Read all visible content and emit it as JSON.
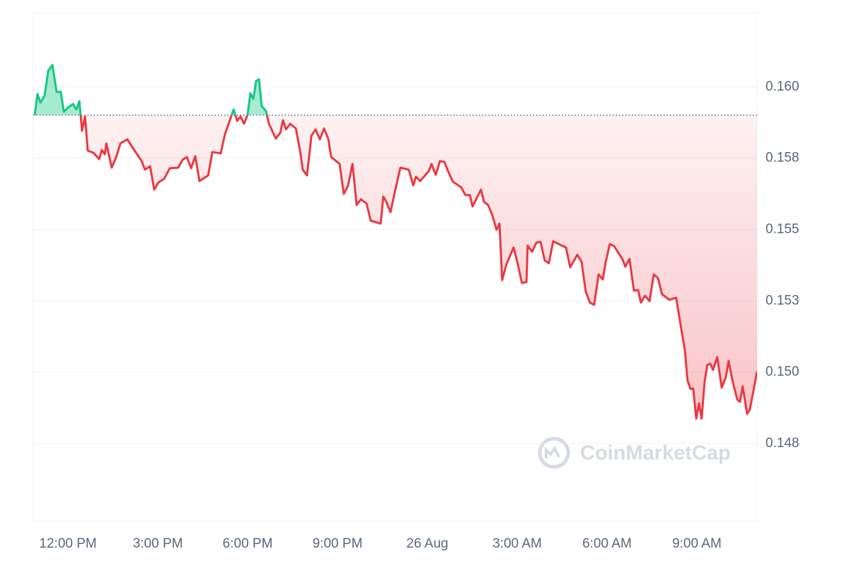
{
  "chart_data": {
    "type": "line",
    "x": [
      -1.11,
      -1.02,
      -0.92,
      -0.78,
      -0.66,
      -0.52,
      -0.38,
      -0.24,
      -0.14,
      0,
      0.17,
      0.28,
      0.38,
      0.47,
      0.57,
      0.66,
      0.85,
      1.04,
      1.13,
      1.23,
      1.28,
      1.46,
      1.61,
      1.75,
      1.98,
      2.22,
      2.46,
      2.57,
      2.74,
      2.88,
      3.02,
      3.21,
      3.4,
      3.68,
      3.83,
      3.97,
      4.11,
      4.25,
      4.39,
      4.68,
      4.82,
      5.1,
      5.24,
      5.39,
      5.53,
      5.65,
      5.76,
      5.88,
      6.0,
      6.09,
      6.19,
      6.28,
      6.38,
      6.47,
      6.61,
      6.71,
      6.94,
      7.09,
      7.18,
      7.28,
      7.42,
      7.61,
      7.75,
      7.84,
      7.98,
      8.13,
      8.27,
      8.41,
      8.55,
      8.69,
      8.79,
      9.07,
      9.21,
      9.35,
      9.5,
      9.64,
      9.78,
      9.97,
      10.11,
      10.44,
      10.53,
      10.63,
      10.77,
      10.91,
      11.1,
      11.38,
      11.53,
      11.62,
      11.76,
      12.05,
      12.14,
      12.28,
      12.42,
      12.57,
      12.71,
      12.85,
      13.13,
      13.27,
      13.42,
      13.51,
      13.79,
      13.89,
      14.03,
      14.17,
      14.31,
      14.41,
      14.5,
      14.64,
      14.88,
      15.02,
      15.16,
      15.31,
      15.35,
      15.5,
      15.64,
      15.78,
      15.92,
      16.06,
      16.2,
      16.49,
      16.63,
      16.77,
      17.01,
      17.15,
      17.29,
      17.43,
      17.57,
      17.72,
      17.86,
      17.95,
      18.09,
      18.24,
      18.52,
      18.61,
      18.75,
      18.9,
      19.04,
      19.13,
      19.27,
      19.42,
      19.56,
      19.7,
      19.84,
      20.08,
      20.31,
      20.46,
      20.6,
      20.69,
      20.79,
      20.88,
      20.98,
      21.07,
      21.16,
      21.26,
      21.35,
      21.45,
      21.54,
      21.68,
      21.83,
      21.97,
      22.06,
      22.2,
      22.35,
      22.44,
      22.53,
      22.68,
      22.77,
      22.91,
      23.01
    ],
    "values": [
      0.15901,
      0.15975,
      0.15945,
      0.1597,
      0.16057,
      0.16077,
      0.15983,
      0.15983,
      0.15913,
      0.15928,
      0.1594,
      0.15921,
      0.1595,
      0.15846,
      0.15896,
      0.15777,
      0.15769,
      0.15747,
      0.15779,
      0.15764,
      0.15802,
      0.15717,
      0.15754,
      0.15802,
      0.15816,
      0.15777,
      0.1574,
      0.1571,
      0.15722,
      0.1564,
      0.15665,
      0.15678,
      0.15715,
      0.15717,
      0.15745,
      0.15754,
      0.15715,
      0.15757,
      0.1567,
      0.1569,
      0.15772,
      0.15767,
      0.15834,
      0.15878,
      0.15921,
      0.15881,
      0.15896,
      0.15871,
      0.15903,
      0.15978,
      0.15958,
      0.1602,
      0.16027,
      0.15933,
      0.15916,
      0.15871,
      0.15819,
      0.15839,
      0.15883,
      0.15851,
      0.15871,
      0.15854,
      0.15777,
      0.1571,
      0.1569,
      0.15829,
      0.15851,
      0.15816,
      0.15854,
      0.15819,
      0.15754,
      0.1573,
      0.15625,
      0.15653,
      0.1573,
      0.15586,
      0.15606,
      0.15591,
      0.15531,
      0.15521,
      0.15616,
      0.15598,
      0.15561,
      0.1563,
      0.15717,
      0.1571,
      0.15655,
      0.15685,
      0.1567,
      0.15705,
      0.1573,
      0.15692,
      0.1574,
      0.15737,
      0.157,
      0.15668,
      0.15648,
      0.15621,
      0.15621,
      0.15581,
      0.1564,
      0.15598,
      0.15586,
      0.15551,
      0.15499,
      0.15521,
      0.15323,
      0.15378,
      0.15437,
      0.1538,
      0.15313,
      0.15316,
      0.15444,
      0.15422,
      0.15454,
      0.15457,
      0.15392,
      0.15382,
      0.15459,
      0.15444,
      0.15437,
      0.15368,
      0.15412,
      0.15387,
      0.15283,
      0.15244,
      0.15236,
      0.15343,
      0.15325,
      0.15382,
      0.15449,
      0.15442,
      0.15395,
      0.1537,
      0.15397,
      0.15286,
      0.15288,
      0.15244,
      0.15268,
      0.15249,
      0.15343,
      0.1533,
      0.15273,
      0.15254,
      0.15261,
      0.15164,
      0.15077,
      0.14971,
      0.14941,
      0.14943,
      0.14837,
      0.14891,
      0.14837,
      0.14966,
      0.15025,
      0.1503,
      0.15008,
      0.15053,
      0.14946,
      0.14983,
      0.1504,
      0.14966,
      0.14904,
      0.14896,
      0.14951,
      0.14854,
      0.14869,
      0.14946,
      0.15003
    ],
    "color_above": "#16c784",
    "color_below": "#ea3943",
    "xlim": [
      -1.16,
      23.01
    ],
    "xticks": [
      {
        "value": 0,
        "label": "12:00 PM"
      },
      {
        "value": 3,
        "label": "3:00 PM"
      },
      {
        "value": 6,
        "label": "6:00 PM"
      },
      {
        "value": 9,
        "label": "9:00 PM"
      },
      {
        "value": 12,
        "label": "26 Aug"
      },
      {
        "value": 15,
        "label": "3:00 AM"
      },
      {
        "value": 18,
        "label": "6:00 AM"
      },
      {
        "value": 21,
        "label": "9:00 AM"
      }
    ],
    "ylim": [
      0.14477,
      0.1626
    ],
    "yticks": [
      {
        "value": 0.1475,
        "label": "0.148"
      },
      {
        "value": 0.15,
        "label": "0.150"
      },
      {
        "value": 0.1525,
        "label": "0.153"
      },
      {
        "value": 0.155,
        "label": "0.155"
      },
      {
        "value": 0.1575,
        "label": "0.158"
      },
      {
        "value": 0.16,
        "label": "0.160"
      }
    ],
    "grid": true,
    "watermark": "CoinMarketCap"
  }
}
